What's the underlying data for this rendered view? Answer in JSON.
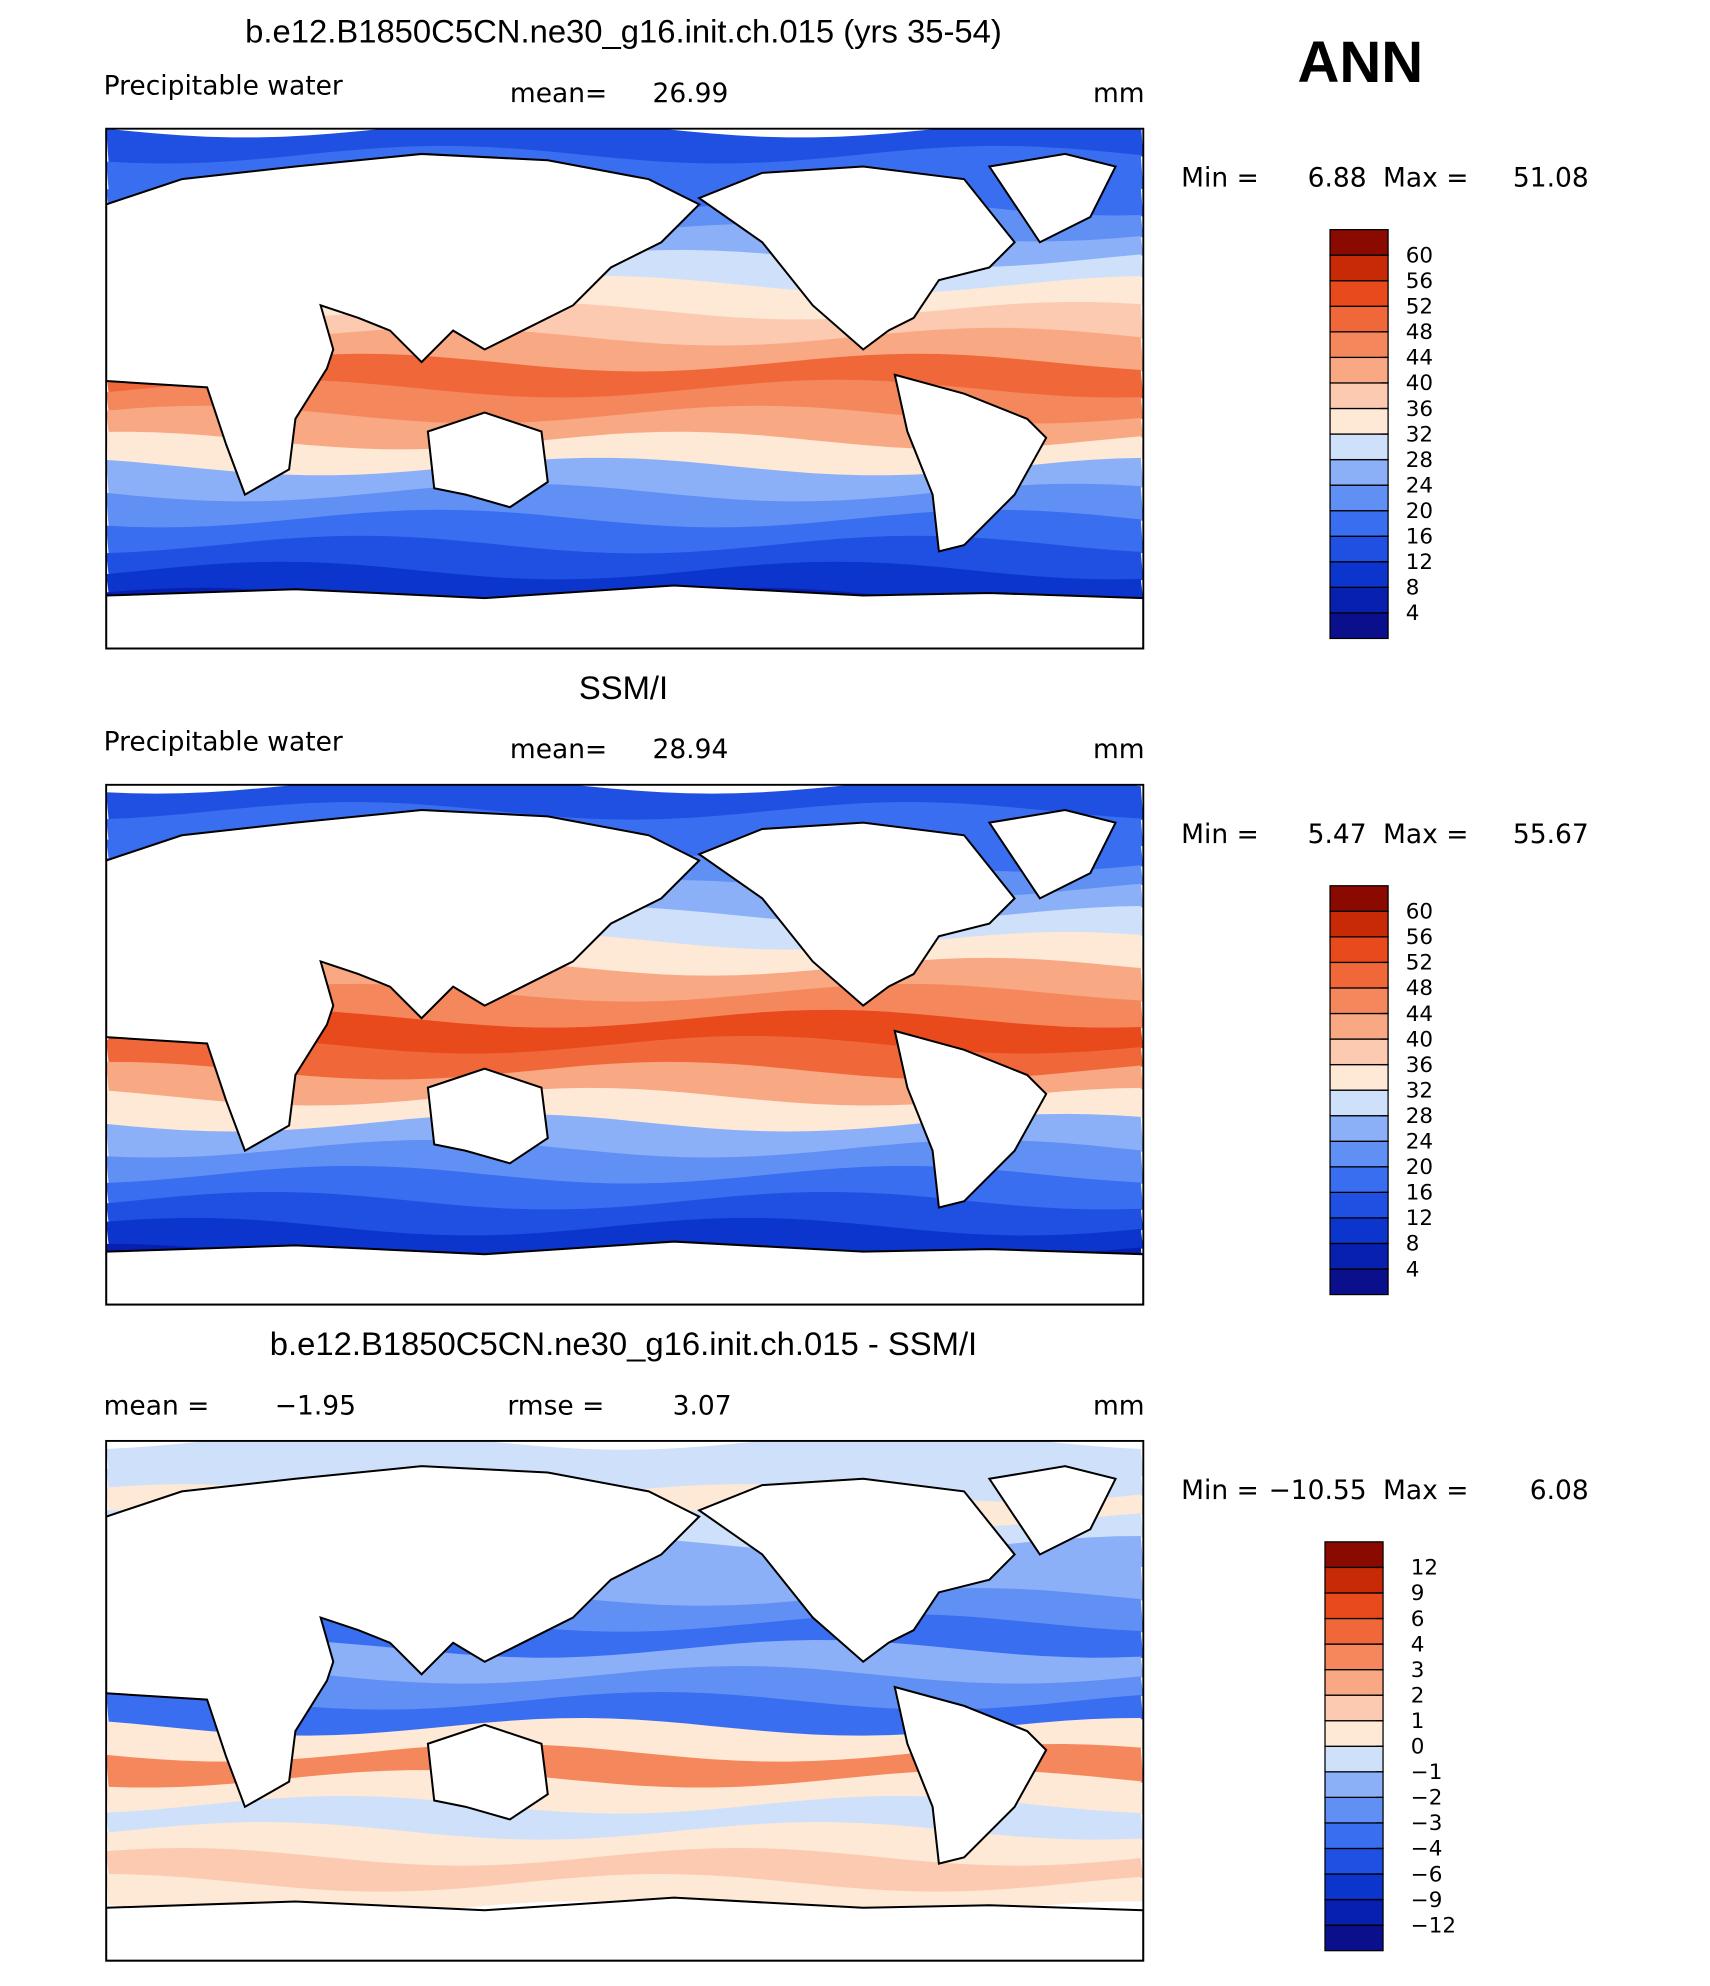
{
  "title": "ANN",
  "panels": [
    {
      "title": "b.e12.B1850C5CN.ne30_g16.init.ch.015 (yrs 35-54)",
      "variable": "Precipitable water",
      "mean_label": "mean=",
      "mean": 26.99,
      "units": "mm",
      "min_label": "Min =",
      "min": 6.88,
      "max_label": "Max =",
      "max": 51.08,
      "colorbar": {
        "levels": [
          4,
          8,
          12,
          16,
          20,
          24,
          28,
          32,
          36,
          40,
          44,
          48,
          52,
          56,
          60
        ],
        "colors": [
          "#0a0f8c",
          "#0820b0",
          "#0b35cc",
          "#1f50e2",
          "#3a6ef0",
          "#6190f5",
          "#8bb0f8",
          "#cfe0fa",
          "#fde9d6",
          "#fccab0",
          "#f8a882",
          "#f5875c",
          "#f0683a",
          "#e84a1c",
          "#c82a08",
          "#8b0a00"
        ]
      }
    },
    {
      "title": "SSM/I",
      "variable": "Precipitable water",
      "mean_label": "mean=",
      "mean": 28.94,
      "units": "mm",
      "min_label": "Min =",
      "min": 5.47,
      "max_label": "Max =",
      "max": 55.67,
      "colorbar": {
        "levels": [
          4,
          8,
          12,
          16,
          20,
          24,
          28,
          32,
          36,
          40,
          44,
          48,
          52,
          56,
          60
        ],
        "colors": [
          "#0a0f8c",
          "#0820b0",
          "#0b35cc",
          "#1f50e2",
          "#3a6ef0",
          "#6190f5",
          "#8bb0f8",
          "#cfe0fa",
          "#fde9d6",
          "#fccab0",
          "#f8a882",
          "#f5875c",
          "#f0683a",
          "#e84a1c",
          "#c82a08",
          "#8b0a00"
        ]
      }
    },
    {
      "title": "b.e12.B1850C5CN.ne30_g16.init.ch.015 - SSM/I",
      "mean_label": "mean =",
      "mean": {
        "value": -1.95,
        "label": "−1.95"
      },
      "rmse_label": "rmse =",
      "rmse": 3.07,
      "units": "mm",
      "min_label": "Min =",
      "min": {
        "value": -10.55,
        "label": "−10.55"
      },
      "max_label": "Max =",
      "max": 6.08,
      "colorbar": {
        "levels": [
          {
            "value": -12,
            "label": "−12"
          },
          {
            "value": -9,
            "label": "−9"
          },
          {
            "value": -6,
            "label": "−6"
          },
          {
            "value": -4,
            "label": "−4"
          },
          {
            "value": -3,
            "label": "−3"
          },
          {
            "value": -2,
            "label": "−2"
          },
          {
            "value": -1,
            "label": "−1"
          },
          0,
          1,
          2,
          3,
          4,
          6,
          9,
          12
        ],
        "colors": [
          "#0a0f8c",
          "#0820b0",
          "#0b35cc",
          "#1f50e2",
          "#3a6ef0",
          "#6190f5",
          "#8bb0f8",
          "#cfe0fa",
          "#fde9d6",
          "#fccab0",
          "#f8a882",
          "#f5875c",
          "#f0683a",
          "#e84a1c",
          "#c82a08",
          "#8b0a00"
        ]
      }
    }
  ]
}
